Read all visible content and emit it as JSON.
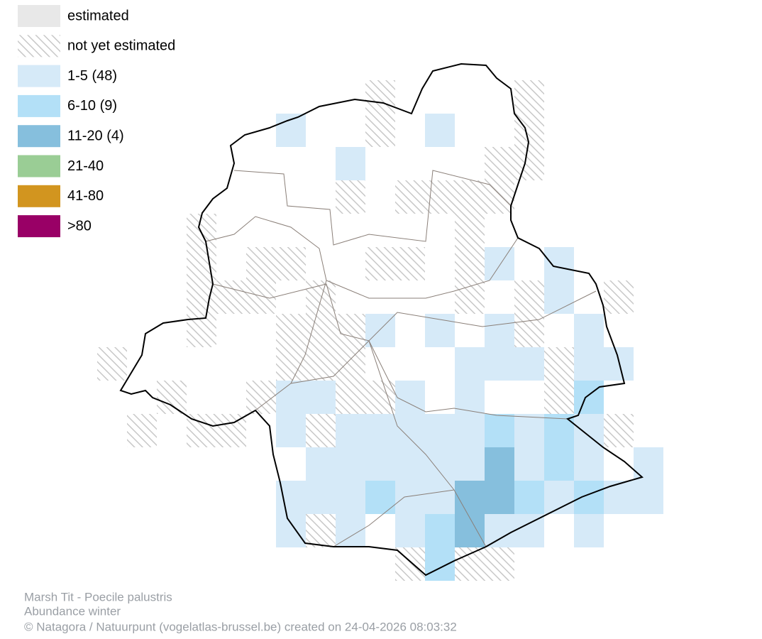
{
  "legend": [
    {
      "label": "estimated",
      "color": "#e8e8e8"
    },
    {
      "label": "not yet estimated"
    },
    {
      "label": "1-5 (48)",
      "color": "#d6eaf8"
    },
    {
      "label": "6-10 (9)",
      "color": "#b3e0f7"
    },
    {
      "label": "11-20 (4)",
      "color": "#86bfdd"
    },
    {
      "label": "21-40",
      "color": "#9acd95"
    },
    {
      "label": "41-80",
      "color": "#d2951f"
    },
    {
      "label": ">80",
      "color": "#990066"
    }
  ],
  "footer": {
    "species": "Marsh Tit - Poecile palustris",
    "subtitle": "Abundance winter",
    "credit": "© Natagora / Natuurpunt (vogelatlas-brussel.be) created on 24-04-2026 08:03:32"
  }
}
